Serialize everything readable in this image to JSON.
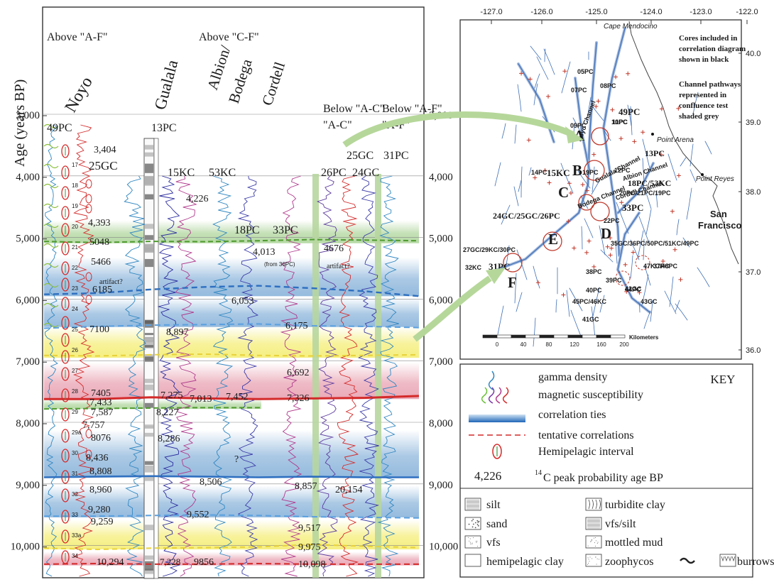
{
  "correlation": {
    "y_axis_label": "Age (years BP)",
    "y_ticks_left": [
      "3,000",
      "4,000",
      "5,000",
      "6,000",
      "7,000",
      "8,000",
      "9,000",
      "10,000"
    ],
    "y_ticks_right": [
      "3,000",
      "4,000",
      "5,000",
      "6,000",
      "7,000",
      "8,000",
      "9,000",
      "10,000"
    ],
    "group_headers": [
      {
        "label": "Above \"A-F\""
      },
      {
        "label": "Above \"C-F\""
      },
      {
        "label": "Below \"A-C\""
      },
      {
        "label": "Below \"A-F\""
      }
    ],
    "site_labels": [
      "Noyo",
      "Gualala",
      "Albion/ Bodega",
      "Cordell"
    ],
    "core_labels": [
      "49PC",
      "13PC",
      "25GC",
      "15KC",
      "53KC",
      "18PC",
      "33PC",
      "26PC",
      "25GC",
      "24GC",
      "31PC"
    ],
    "ages": [
      "3,404",
      "4,226",
      "4,393",
      "4676",
      "5048",
      "5466",
      "6185",
      "6,053",
      "6,175",
      "7100",
      "6,692",
      "7405",
      "7,433",
      "7,275",
      "7,013",
      "7,452",
      "7,326",
      "7,587",
      "8,227",
      "7,757",
      "8076",
      "8,286",
      "8,436",
      "8,808",
      "8,506",
      "8,857",
      "8,960",
      "9,280",
      "9,259",
      "9,552",
      "9,517",
      "9,975",
      "10,294",
      "10,098",
      "9856"
    ],
    "grey_ages": [
      "4,013",
      "8,897",
      "20,154",
      "7,228"
    ],
    "notes": [
      "(from 36PC)",
      "artifact?",
      "artifact?",
      "?"
    ],
    "hemi_numbers": [
      "17",
      "18",
      "19",
      "20",
      "21",
      "22",
      "23",
      "24",
      "25",
      "26",
      "27",
      "28",
      "29",
      "29a",
      "30",
      "31",
      "32",
      "33",
      "33a",
      "34"
    ]
  },
  "map": {
    "lon_ticks": [
      "-127.0",
      "-126.0",
      "-125.0",
      "-124.0",
      "-123.0",
      "-122.0"
    ],
    "lat_ticks": [
      "40.0",
      "39.0",
      "38.0",
      "37.0",
      "36.0"
    ],
    "place_labels": [
      "Cape Mendocino",
      "Point Arena",
      "Point Reyes",
      "San Francisco"
    ],
    "note1": [
      "Cores included in",
      "correlation diagram",
      "shown in black"
    ],
    "note2": [
      "Channel pathways",
      "represented in",
      "confluence test",
      "shaded grey"
    ],
    "letters": [
      "A",
      "B",
      "C",
      "D",
      "E",
      "F"
    ],
    "core_black": [
      "49PC",
      "15KC",
      "13PC",
      "18PC/53KC",
      "33PC",
      "24GC/25GC/26PC",
      "31PC"
    ],
    "core_green": [
      "05PC",
      "07PC",
      "08PC",
      "09PC",
      "12PC",
      "14PC",
      "19PC",
      "20PC/21PC/19PC",
      "22PC",
      "27GC/29KC/30PC",
      "32KC",
      "35GC/36PC/50PC/51KC/49PC",
      "37PC",
      "38PC",
      "39PC",
      "40PC",
      "41GC",
      "42GC",
      "44PC",
      "45PC/46KC",
      "47KC/48PC",
      "43GC",
      "10PC",
      "11PC"
    ],
    "channel_names": [
      "Noyo Channel",
      "Gualala Channel",
      "Albion Channel",
      "Bodega Channel",
      "Cordell Channel"
    ],
    "scale_label": "Kilometers",
    "scale_ticks": [
      "0",
      "40",
      "80",
      "120",
      "160",
      "200"
    ]
  },
  "key": {
    "title": "KEY",
    "items": [
      {
        "label": "gamma density"
      },
      {
        "label": "magnetic susceptibility"
      },
      {
        "label": "correlation  ties"
      },
      {
        "label": "tentative correlations"
      },
      {
        "label": "Hemipelagic interval"
      }
    ],
    "age_example": "4,226",
    "age_text": "C peak probability age BP",
    "age_superscript": "14",
    "lithology": [
      "silt",
      "sand",
      "vfs",
      "hemipelagic clay",
      "turbidite clay",
      "vfs/silt",
      "mottled mud",
      "zoophycos",
      "burrows"
    ]
  },
  "colors": {
    "blue_band": "#8fb7dc",
    "yellow_band": "#f5ee7a",
    "red_band": "#e9a5b4",
    "green_band": "#b2d7a0",
    "blue_tie": "#2e6fc0",
    "red_tie": "#d42a2a",
    "green_tie": "#4f9a2f",
    "arrow": "#b6d79a",
    "core_green_text": "#53a63a"
  }
}
